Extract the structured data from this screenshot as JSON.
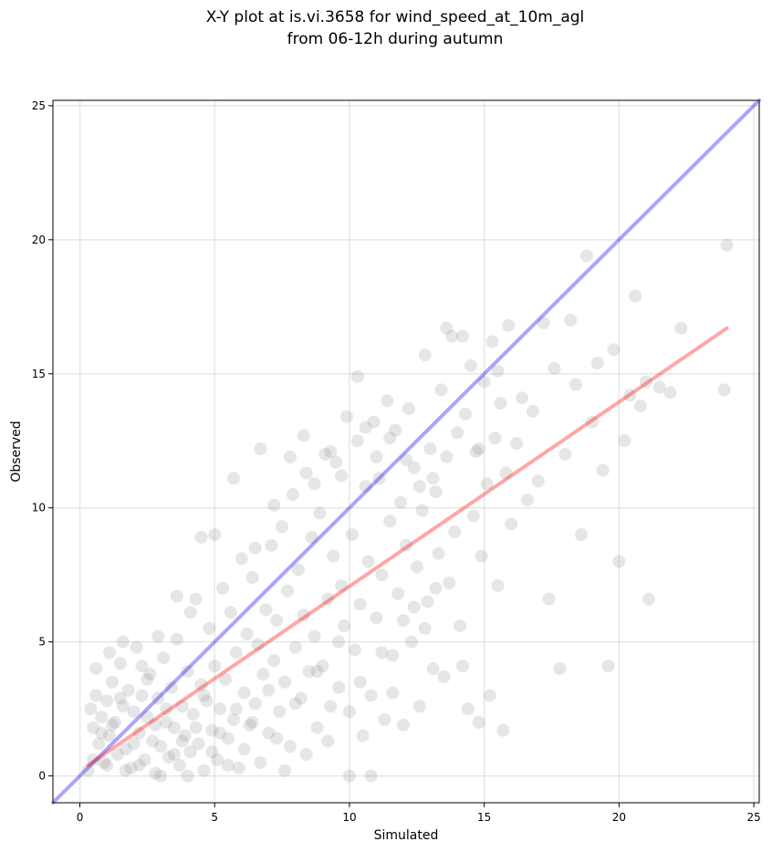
{
  "chart_data": {
    "type": "scatter",
    "title_line1": "X-Y plot at is.vi.3658 for wind_speed_at_10m_agl",
    "title_line2": "from 06-12h during autumn",
    "xlabel": "Simulated",
    "ylabel": "Observed",
    "xlim": [
      -1,
      25.2
    ],
    "ylim": [
      -1,
      25.2
    ],
    "xticks": [
      0,
      5,
      10,
      15,
      20,
      25
    ],
    "yticks": [
      0,
      5,
      10,
      15,
      20,
      25
    ],
    "xtick_labels": [
      "0",
      "5",
      "10",
      "15",
      "20",
      "25"
    ],
    "ytick_labels": [
      "0",
      "5",
      "10",
      "15",
      "20",
      "25"
    ],
    "grid": true,
    "point_color": "#808080",
    "point_opacity": 0.2,
    "identity_line": {
      "from": [
        -1,
        -1
      ],
      "to": [
        25.2,
        25.2
      ],
      "color": "#0000ff",
      "opacity": 0.35
    },
    "fit_line": {
      "from": [
        0.3,
        0.4
      ],
      "to": [
        24,
        16.7
      ],
      "color": "#ff0000",
      "opacity": 0.35
    },
    "points": [
      [
        0.4,
        2.5
      ],
      [
        0.5,
        1.8
      ],
      [
        0.6,
        3.0
      ],
      [
        0.7,
        1.2
      ],
      [
        0.8,
        2.2
      ],
      [
        0.9,
        0.5
      ],
      [
        1.0,
        2.8
      ],
      [
        1.1,
        1.5
      ],
      [
        1.2,
        3.5
      ],
      [
        1.3,
        2.0
      ],
      [
        1.4,
        0.8
      ],
      [
        1.5,
        4.2
      ],
      [
        1.6,
        2.6
      ],
      [
        1.7,
        1.0
      ],
      [
        1.8,
        3.2
      ],
      [
        1.9,
        0.3
      ],
      [
        2.0,
        2.4
      ],
      [
        2.1,
        4.8
      ],
      [
        2.2,
        1.6
      ],
      [
        2.3,
        3.0
      ],
      [
        2.4,
        0.6
      ],
      [
        2.5,
        2.2
      ],
      [
        2.6,
        3.8
      ],
      [
        2.7,
        1.3
      ],
      [
        2.8,
        0.1
      ],
      [
        2.9,
        2.9
      ],
      [
        3.0,
        1.1
      ],
      [
        3.1,
        4.4
      ],
      [
        3.2,
        2.0
      ],
      [
        3.3,
        0.7
      ],
      [
        3.4,
        3.3
      ],
      [
        3.5,
        1.8
      ],
      [
        3.6,
        5.1
      ],
      [
        3.7,
        0.4
      ],
      [
        3.8,
        2.6
      ],
      [
        3.9,
        1.5
      ],
      [
        4.0,
        3.9
      ],
      [
        4.1,
        0.9
      ],
      [
        4.2,
        2.3
      ],
      [
        4.3,
        6.6
      ],
      [
        4.4,
        1.2
      ],
      [
        4.5,
        3.4
      ],
      [
        4.6,
        0.2
      ],
      [
        4.7,
        2.8
      ],
      [
        4.8,
        5.5
      ],
      [
        4.9,
        1.7
      ],
      [
        5.0,
        4.1
      ],
      [
        5.1,
        0.6
      ],
      [
        5.2,
        2.5
      ],
      [
        5.3,
        7.0
      ],
      [
        5.4,
        3.6
      ],
      [
        5.5,
        1.4
      ],
      [
        5.6,
        6.1
      ],
      [
        5.7,
        2.1
      ],
      [
        5.8,
        4.6
      ],
      [
        5.9,
        0.3
      ],
      [
        6.0,
        8.1
      ],
      [
        6.1,
        3.1
      ],
      [
        6.2,
        5.3
      ],
      [
        6.3,
        1.9
      ],
      [
        6.4,
        7.4
      ],
      [
        6.5,
        2.7
      ],
      [
        6.6,
        4.9
      ],
      [
        6.7,
        12.2
      ],
      [
        6.8,
        3.8
      ],
      [
        6.9,
        6.2
      ],
      [
        7.0,
        1.6
      ],
      [
        7.1,
        8.6
      ],
      [
        7.2,
        4.3
      ],
      [
        7.3,
        5.8
      ],
      [
        7.4,
        2.4
      ],
      [
        7.5,
        9.3
      ],
      [
        7.6,
        3.5
      ],
      [
        7.7,
        6.9
      ],
      [
        7.8,
        1.1
      ],
      [
        7.9,
        10.5
      ],
      [
        8.0,
        4.8
      ],
      [
        8.1,
        7.7
      ],
      [
        8.2,
        2.9
      ],
      [
        8.3,
        6.0
      ],
      [
        8.4,
        11.3
      ],
      [
        8.5,
        3.9
      ],
      [
        8.6,
        8.9
      ],
      [
        8.7,
        5.2
      ],
      [
        8.8,
        1.8
      ],
      [
        8.9,
        9.8
      ],
      [
        9.0,
        4.1
      ],
      [
        9.1,
        12.0
      ],
      [
        9.2,
        6.6
      ],
      [
        9.3,
        2.6
      ],
      [
        9.4,
        8.2
      ],
      [
        9.5,
        11.7
      ],
      [
        9.6,
        3.3
      ],
      [
        9.7,
        7.1
      ],
      [
        9.8,
        5.6
      ],
      [
        9.9,
        13.4
      ],
      [
        10.0,
        0.0
      ],
      [
        10.1,
        9.0
      ],
      [
        10.2,
        4.7
      ],
      [
        10.3,
        12.5
      ],
      [
        10.4,
        6.4
      ],
      [
        10.5,
        1.5
      ],
      [
        10.6,
        10.8
      ],
      [
        10.7,
        8.0
      ],
      [
        10.8,
        3.0
      ],
      [
        10.9,
        13.2
      ],
      [
        11.0,
        5.9
      ],
      [
        11.1,
        11.1
      ],
      [
        11.2,
        7.5
      ],
      [
        11.3,
        2.1
      ],
      [
        11.4,
        14.0
      ],
      [
        11.5,
        9.5
      ],
      [
        11.6,
        4.5
      ],
      [
        11.7,
        12.9
      ],
      [
        11.8,
        6.8
      ],
      [
        11.9,
        10.2
      ],
      [
        12.0,
        1.9
      ],
      [
        12.1,
        8.6
      ],
      [
        12.2,
        13.7
      ],
      [
        12.3,
        5.0
      ],
      [
        12.4,
        11.5
      ],
      [
        12.5,
        7.8
      ],
      [
        12.6,
        2.6
      ],
      [
        12.7,
        9.9
      ],
      [
        12.8,
        15.7
      ],
      [
        12.9,
        6.5
      ],
      [
        13.0,
        12.2
      ],
      [
        13.1,
        4.0
      ],
      [
        13.2,
        10.6
      ],
      [
        13.3,
        8.3
      ],
      [
        13.4,
        14.4
      ],
      [
        13.5,
        3.7
      ],
      [
        13.6,
        11.9
      ],
      [
        13.7,
        7.2
      ],
      [
        13.8,
        16.4
      ],
      [
        13.9,
        9.1
      ],
      [
        14.0,
        12.8
      ],
      [
        14.1,
        5.6
      ],
      [
        14.2,
        4.1
      ],
      [
        14.3,
        13.5
      ],
      [
        14.4,
        2.5
      ],
      [
        14.5,
        15.3
      ],
      [
        14.6,
        9.7
      ],
      [
        14.7,
        12.1
      ],
      [
        14.8,
        2.0
      ],
      [
        14.9,
        8.2
      ],
      [
        15.0,
        14.7
      ],
      [
        15.1,
        10.9
      ],
      [
        15.2,
        3.0
      ],
      [
        15.3,
        16.2
      ],
      [
        15.4,
        12.6
      ],
      [
        15.5,
        7.1
      ],
      [
        15.6,
        13.9
      ],
      [
        15.7,
        1.7
      ],
      [
        15.8,
        11.3
      ],
      [
        15.9,
        16.8
      ],
      [
        16.0,
        9.4
      ],
      [
        16.2,
        12.4
      ],
      [
        16.4,
        14.1
      ],
      [
        16.6,
        10.3
      ],
      [
        16.8,
        13.6
      ],
      [
        17.0,
        11.0
      ],
      [
        17.2,
        16.9
      ],
      [
        17.4,
        6.6
      ],
      [
        17.6,
        15.2
      ],
      [
        17.8,
        4.0
      ],
      [
        18.0,
        12.0
      ],
      [
        18.2,
        17.0
      ],
      [
        18.4,
        14.6
      ],
      [
        18.6,
        9.0
      ],
      [
        18.8,
        19.4
      ],
      [
        19.0,
        13.2
      ],
      [
        19.2,
        15.4
      ],
      [
        19.4,
        11.4
      ],
      [
        19.6,
        4.1
      ],
      [
        19.8,
        15.9
      ],
      [
        20.0,
        8.0
      ],
      [
        20.2,
        12.5
      ],
      [
        20.4,
        14.2
      ],
      [
        20.6,
        17.9
      ],
      [
        20.8,
        13.8
      ],
      [
        21.0,
        14.7
      ],
      [
        21.1,
        6.6
      ],
      [
        21.5,
        14.5
      ],
      [
        21.9,
        14.3
      ],
      [
        22.3,
        16.7
      ],
      [
        23.9,
        14.4
      ],
      [
        24.0,
        19.8
      ],
      [
        0.3,
        0.2
      ],
      [
        0.5,
        0.6
      ],
      [
        0.8,
        1.6
      ],
      [
        1.0,
        0.4
      ],
      [
        1.2,
        1.9
      ],
      [
        1.5,
        2.9
      ],
      [
        1.7,
        0.2
      ],
      [
        2.0,
        1.2
      ],
      [
        2.2,
        0.4
      ],
      [
        2.5,
        3.6
      ],
      [
        2.8,
        1.9
      ],
      [
        3.0,
        0.0
      ],
      [
        3.2,
        2.5
      ],
      [
        3.5,
        0.8
      ],
      [
        3.8,
        1.3
      ],
      [
        4.0,
        0.0
      ],
      [
        4.3,
        1.8
      ],
      [
        4.6,
        3.0
      ],
      [
        4.9,
        0.9
      ],
      [
        5.2,
        1.6
      ],
      [
        5.5,
        0.4
      ],
      [
        5.8,
        2.5
      ],
      [
        6.1,
        1.0
      ],
      [
        6.4,
        2.0
      ],
      [
        6.7,
        0.5
      ],
      [
        7.0,
        3.2
      ],
      [
        7.3,
        1.4
      ],
      [
        7.6,
        0.2
      ],
      [
        8.0,
        2.7
      ],
      [
        8.4,
        0.8
      ],
      [
        8.8,
        3.9
      ],
      [
        9.2,
        1.3
      ],
      [
        9.6,
        5.0
      ],
      [
        10.0,
        2.4
      ],
      [
        10.4,
        3.5
      ],
      [
        10.8,
        0.0
      ],
      [
        11.2,
        4.6
      ],
      [
        11.6,
        3.1
      ],
      [
        12.0,
        5.8
      ],
      [
        12.4,
        6.3
      ],
      [
        12.8,
        5.5
      ],
      [
        13.2,
        7.0
      ],
      [
        0.6,
        4.0
      ],
      [
        1.1,
        4.6
      ],
      [
        1.6,
        5.0
      ],
      [
        2.3,
        4.1
      ],
      [
        2.9,
        5.2
      ],
      [
        3.6,
        6.7
      ],
      [
        4.1,
        6.1
      ],
      [
        4.5,
        8.9
      ],
      [
        5.0,
        9.0
      ],
      [
        5.7,
        11.1
      ],
      [
        6.5,
        8.5
      ],
      [
        7.2,
        10.1
      ],
      [
        7.8,
        11.9
      ],
      [
        8.3,
        12.7
      ],
      [
        8.7,
        10.9
      ],
      [
        9.3,
        12.1
      ],
      [
        9.7,
        11.2
      ],
      [
        10.3,
        14.9
      ],
      [
        10.6,
        13.0
      ],
      [
        11.0,
        11.9
      ],
      [
        11.5,
        12.6
      ],
      [
        12.1,
        11.8
      ],
      [
        12.6,
        10.8
      ],
      [
        13.1,
        11.1
      ],
      [
        13.6,
        16.7
      ],
      [
        14.2,
        16.4
      ],
      [
        14.8,
        12.2
      ],
      [
        15.5,
        15.1
      ]
    ]
  }
}
